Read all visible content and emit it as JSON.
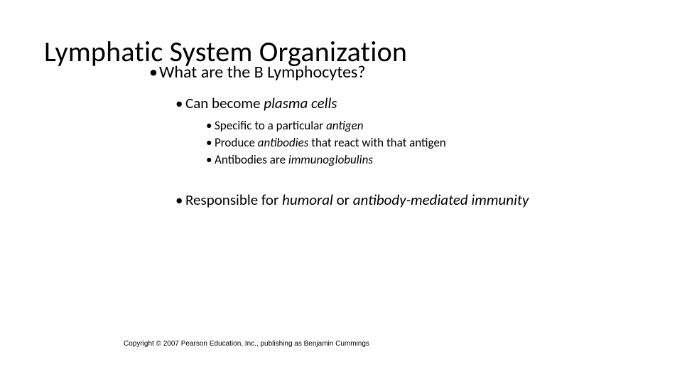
{
  "colors": {
    "background": "#ffffff",
    "text": "#000000"
  },
  "typography": {
    "title_fontsize": 40,
    "lvl1_fontsize": 24,
    "lvl2_fontsize": 21,
    "lvl3_fontsize": 17,
    "footer_fontsize": 10,
    "font_family": "Calibri"
  },
  "bullet_char": "•",
  "title": "Lymphatic System Organization",
  "lvl1": "What are the B Lymphocytes?",
  "lvl2a_pre": "Can become ",
  "lvl2a_it": "plasma cells",
  "lvl3_1_pre": "Specific to a particular ",
  "lvl3_1_it": "antigen",
  "lvl3_2_pre": "Produce ",
  "lvl3_2_it": "antibodies",
  "lvl3_2_post": " that react with that antigen",
  "lvl3_3_pre": "Antibodies are ",
  "lvl3_3_it": "immunoglobulins",
  "lvl2b_pre": "Responsible for ",
  "lvl2b_it": "humoral",
  "lvl2b_mid": " or ",
  "lvl2b_it2": "antibody-mediated immunity",
  "footer": "Copyright © 2007 Pearson Education, Inc., publishing as Benjamin Cummings"
}
